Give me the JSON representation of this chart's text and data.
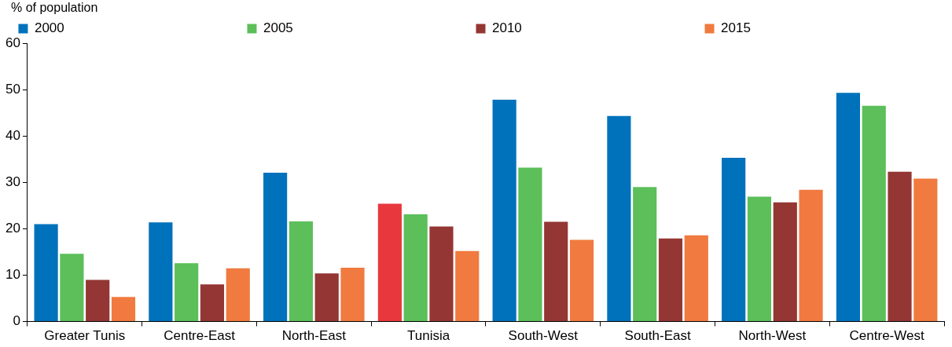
{
  "chart_data": {
    "type": "bar",
    "ylabel": "% of population",
    "categories": [
      "Greater Tunis",
      "Centre-East",
      "North-East",
      "Tunisia",
      "South-West",
      "South-East",
      "North-West",
      "Centre-West"
    ],
    "series": [
      {
        "name": "2000",
        "color": "#0072bc",
        "colors": [
          "#0072bc",
          "#0072bc",
          "#0072bc",
          "#e8383d",
          "#0072bc",
          "#0072bc",
          "#0072bc",
          "#0072bc"
        ],
        "values": [
          21.0,
          21.4,
          32.1,
          25.4,
          47.8,
          44.3,
          35.3,
          49.3
        ]
      },
      {
        "name": "2005",
        "color": "#5cbf5a",
        "values": [
          14.6,
          12.6,
          21.6,
          23.1,
          33.2,
          29.0,
          26.9,
          46.5
        ]
      },
      {
        "name": "2010",
        "color": "#943634",
        "values": [
          9.0,
          8.0,
          10.4,
          20.5,
          21.5,
          17.9,
          25.7,
          32.3
        ]
      },
      {
        "name": "2015",
        "color": "#f07a3f",
        "values": [
          5.3,
          11.5,
          11.6,
          15.2,
          17.6,
          18.6,
          28.4,
          30.8
        ]
      }
    ],
    "ylim": [
      0,
      60
    ],
    "yticks": [
      0,
      10,
      20,
      30,
      40,
      50,
      60
    ],
    "grid": false,
    "legend": "top"
  }
}
